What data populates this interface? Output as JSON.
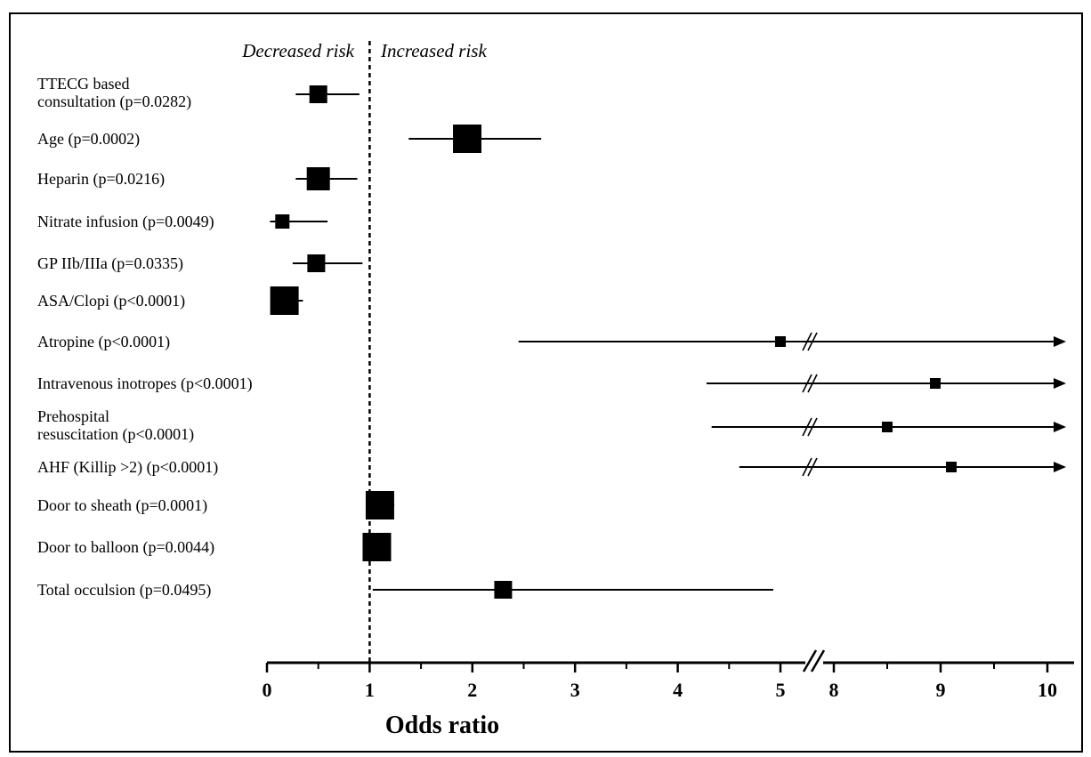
{
  "chart_data": {
    "type": "forest",
    "xlabel": "Odds ratio",
    "reference_line": 1,
    "annotations": {
      "left": "Decreased risk",
      "right": "Increased risk"
    },
    "x_axis_break": {
      "from": 5.4,
      "to": 7.6
    },
    "x_ticks": [
      "0",
      "1",
      "2",
      "3",
      "4",
      "5",
      "8",
      "9",
      "10"
    ],
    "xlim": [
      0,
      10.3
    ],
    "grid": false,
    "rows": [
      {
        "label_lines": [
          "TTECG based",
          "consultation  (p=0.0282)"
        ],
        "or": 0.5,
        "ci_low": 0.28,
        "ci_high": 0.9,
        "weight": "medium"
      },
      {
        "label_lines": [
          "Age (p=0.0002)"
        ],
        "or": 1.95,
        "ci_low": 1.38,
        "ci_high": 2.67,
        "weight": "large"
      },
      {
        "label_lines": [
          "Heparin (p=0.0216)"
        ],
        "or": 0.5,
        "ci_low": 0.28,
        "ci_high": 0.88,
        "weight": "medium-large"
      },
      {
        "label_lines": [
          "Nitrate infusion (p=0.0049)"
        ],
        "or": 0.15,
        "ci_low": 0.03,
        "ci_high": 0.59,
        "weight": "small-medium"
      },
      {
        "label_lines": [
          "GP IIb/IIIa (p=0.0335)"
        ],
        "or": 0.48,
        "ci_low": 0.25,
        "ci_high": 0.93,
        "weight": "medium"
      },
      {
        "label_lines": [
          "ASA/Clopi (p<0.0001)"
        ],
        "or": 0.17,
        "ci_low": 0.06,
        "ci_high": 0.35,
        "weight": "large"
      },
      {
        "label_lines": [
          "Atropine (p<0.0001)"
        ],
        "or": 5.0,
        "ci_low": 2.45,
        "ci_high": "beyond 10",
        "weight": "small"
      },
      {
        "label_lines": [
          "Intravenous inotropes  (p<0.0001)"
        ],
        "or": 8.95,
        "ci_low": 4.28,
        "ci_high": "beyond 10",
        "weight": "small"
      },
      {
        "label_lines": [
          "Prehospital",
          "resuscitation (p<0.0001)"
        ],
        "or": 8.5,
        "ci_low": 4.33,
        "ci_high": "beyond 10",
        "weight": "small"
      },
      {
        "label_lines": [
          "AHF (Killip >2)  (p<0.0001)"
        ],
        "or": 9.1,
        "ci_low": 4.6,
        "ci_high": "beyond 10",
        "weight": "small"
      },
      {
        "label_lines": [
          "Door to sheath (p=0.0001)"
        ],
        "or": 1.1,
        "ci_low": 0.98,
        "ci_high": 1.24,
        "weight": "large"
      },
      {
        "label_lines": [
          "Door to balloon (p=0.0044)"
        ],
        "or": 1.07,
        "ci_low": 0.95,
        "ci_high": 1.2,
        "weight": "large"
      },
      {
        "label_lines": [
          "Total occulsion (p=0.0495)"
        ],
        "or": 2.3,
        "ci_low": 1.03,
        "ci_high": 4.93,
        "weight": "medium"
      }
    ]
  }
}
